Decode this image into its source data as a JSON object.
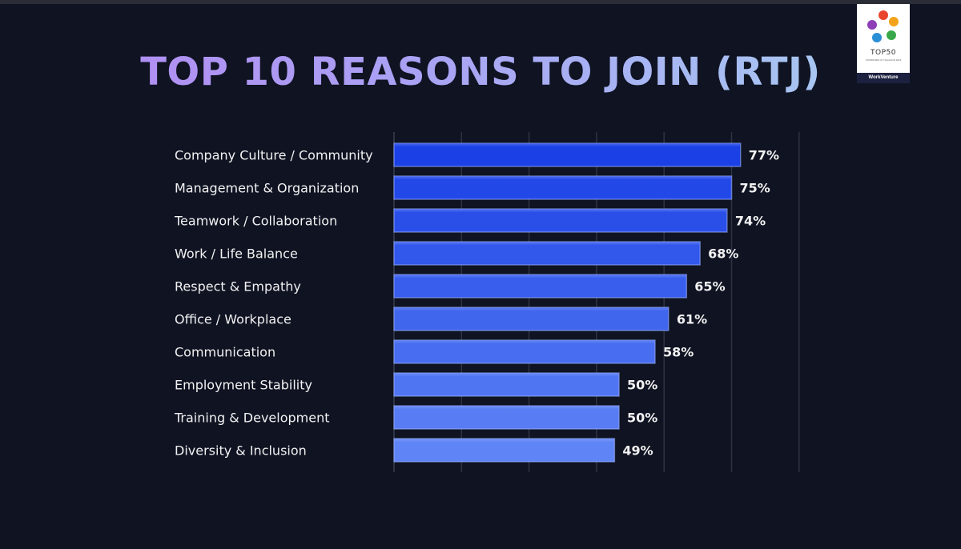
{
  "page": {
    "title": "TOP 10 REASONS TO JOIN (RTJ)"
  },
  "badge": {
    "title": "TOP50",
    "subtitle": "COMPANIES IN THAILAND 2024",
    "brand": "WorkVenture"
  },
  "colors": {
    "background": "#0f1322",
    "bar_start": "#1b40e6",
    "bar_end": "#5f84f5",
    "grid": "#2e3344"
  },
  "chart_data": {
    "type": "bar",
    "orientation": "horizontal",
    "title": "TOP 10 REASONS TO JOIN (RTJ)",
    "categories": [
      "Company Culture / Community",
      "Management & Organization",
      "Teamwork / Collaboration",
      "Work / Life Balance",
      "Respect & Empathy",
      "Office / Workplace",
      "Communication",
      "Employment Stability",
      "Training & Development",
      "Diversity & Inclusion"
    ],
    "values": [
      77,
      75,
      74,
      68,
      65,
      61,
      58,
      50,
      50,
      49
    ],
    "value_labels": [
      "77%",
      "75%",
      "74%",
      "68%",
      "65%",
      "61%",
      "58%",
      "50%",
      "50%",
      "49%"
    ],
    "unit": "%",
    "xlim": [
      0,
      100
    ],
    "xlabel": "",
    "ylabel": "",
    "grid": true
  }
}
